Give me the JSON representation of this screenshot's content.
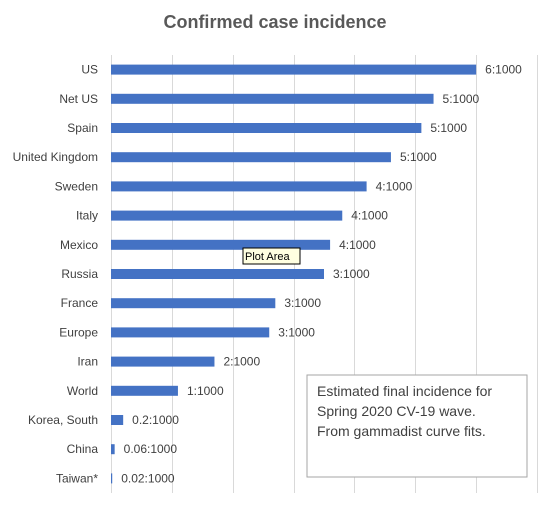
{
  "chart_data": {
    "type": "bar",
    "orientation": "horizontal",
    "title": "Confirmed case incidence",
    "categories": [
      "US",
      "Net US",
      "Spain",
      "United Kingdom",
      "Sweden",
      "Italy",
      "Mexico",
      "Russia",
      "France",
      "Europe",
      "Iran",
      "World",
      "Korea, South",
      "China",
      "Taiwan*"
    ],
    "values": [
      6.0,
      5.3,
      5.1,
      4.6,
      4.2,
      3.8,
      3.6,
      3.5,
      2.7,
      2.6,
      1.7,
      1.1,
      0.2,
      0.06,
      0.02
    ],
    "data_labels": [
      "6:1000",
      "5:1000",
      "5:1000",
      "5:1000",
      "4:1000",
      "4:1000",
      "4:1000",
      "3:1000",
      "3:1000",
      "3:1000",
      "2:1000",
      "1:1000",
      "0.2:1000",
      "0.06:1000",
      "0.02:1000"
    ],
    "xlim": [
      0,
      7
    ],
    "grid": true,
    "bar_color": "#4472c4",
    "grid_color": "#d9d9d9",
    "xlabel": "",
    "ylabel": ""
  },
  "tooltip": {
    "text": "Plot Area"
  },
  "note": {
    "lines": [
      "Estimated final incidence for",
      "Spring 2020 CV-19 wave.",
      "From gammadist curve fits."
    ]
  }
}
